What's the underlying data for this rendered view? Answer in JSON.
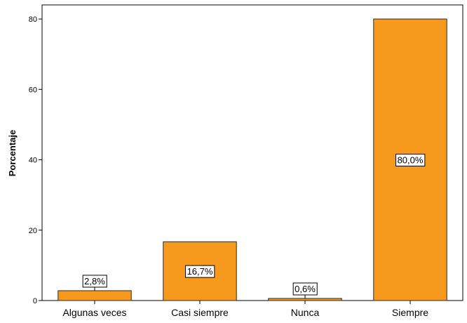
{
  "chart_data": {
    "type": "bar",
    "categories": [
      "Algunas veces",
      "Casi siempre",
      "Nunca",
      "Siempre"
    ],
    "values": [
      2.8,
      16.7,
      0.6,
      80.0
    ],
    "data_labels": [
      "2,8%",
      "16,7%",
      "0,6%",
      "80,0%"
    ],
    "title": "",
    "xlabel": "",
    "ylabel": "Porcentaje",
    "ylim": [
      0,
      84
    ],
    "yticks": [
      0,
      20,
      40,
      60,
      80
    ],
    "grid": false,
    "bar_color": "#f7991c",
    "bar_stroke": "#2b2b2b"
  }
}
